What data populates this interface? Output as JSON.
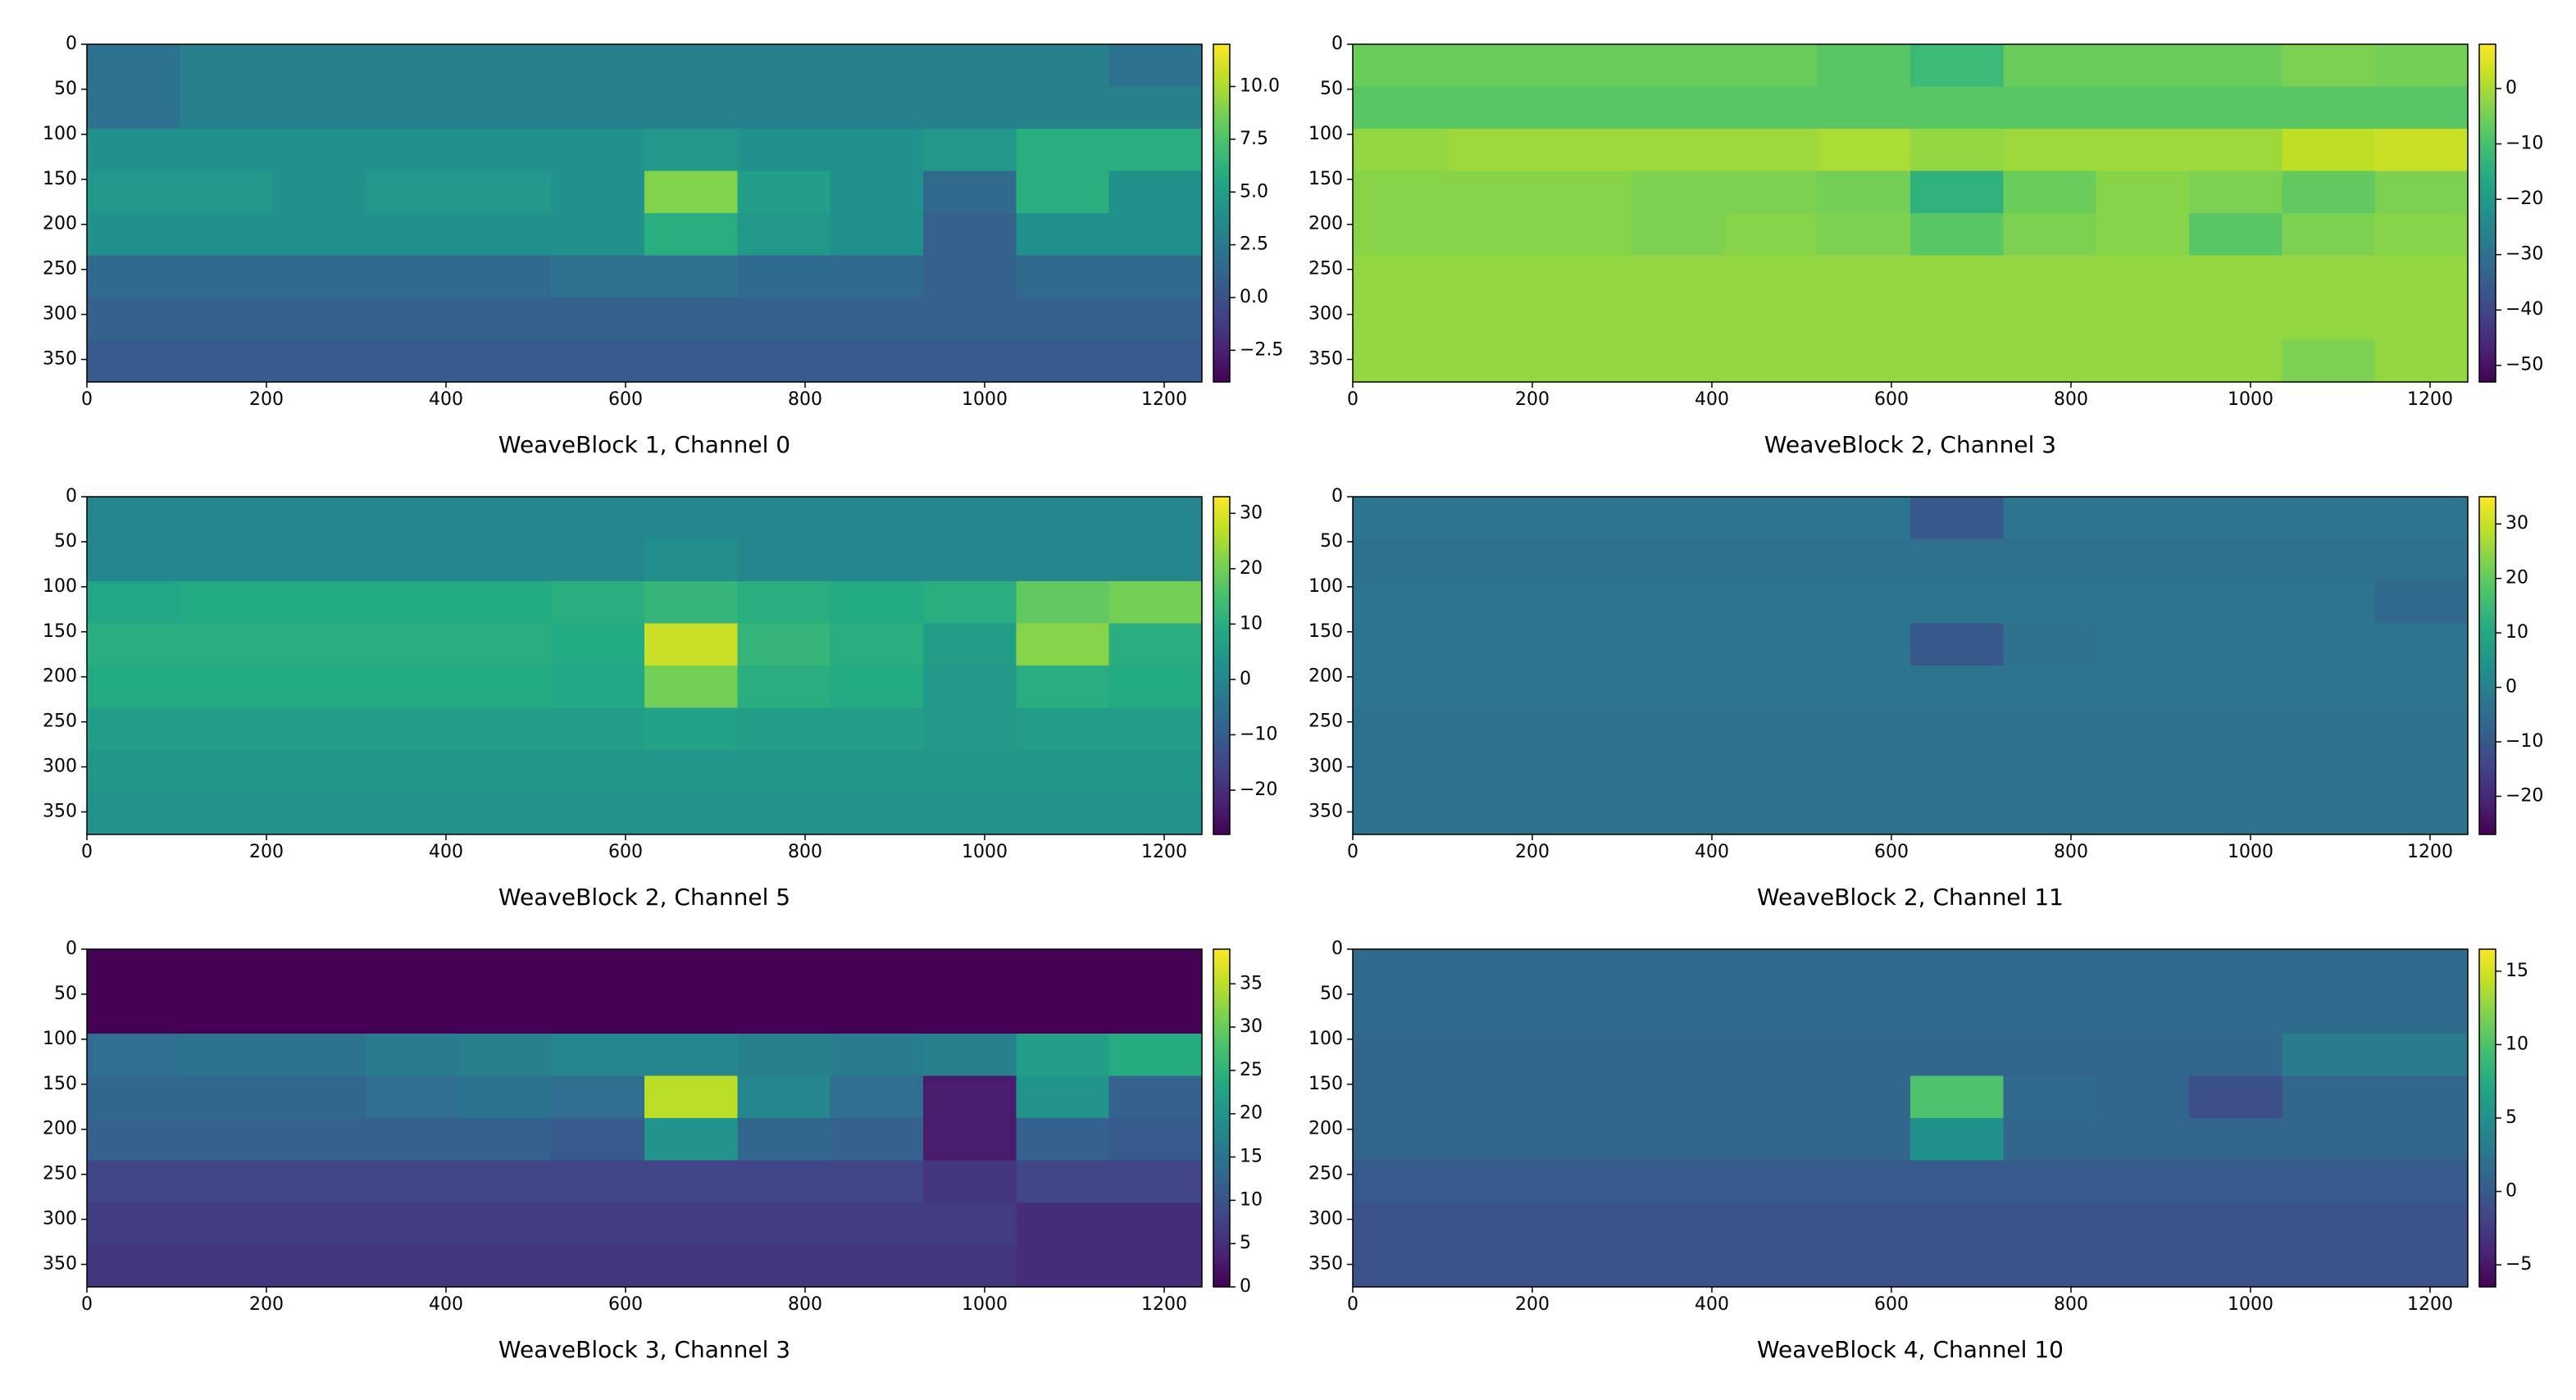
{
  "chart_data": [
    {
      "type": "heatmap",
      "xlabel": "WeaveBlock 1, Channel 0",
      "colormap": "viridis",
      "xlim": [
        0,
        1242
      ],
      "ylim": [
        375,
        0
      ],
      "xticks": [
        0,
        200,
        400,
        600,
        800,
        1000,
        1200
      ],
      "yticks": [
        0,
        50,
        100,
        150,
        200,
        250,
        300,
        350
      ],
      "zlim": [
        -4,
        12
      ],
      "zticks": [
        {
          "value": -2.5,
          "label": "−2.5"
        },
        {
          "value": 0,
          "label": "0.0"
        },
        {
          "value": 2.5,
          "label": "2.5"
        },
        {
          "value": 5,
          "label": "5.0"
        },
        {
          "value": 7.5,
          "label": "7.5"
        },
        {
          "value": 10,
          "label": "10.0"
        }
      ],
      "z": [
        [
          2,
          3,
          3,
          3,
          3,
          3,
          3,
          3,
          3,
          3,
          3,
          2
        ],
        [
          2,
          3,
          3,
          3,
          3,
          3,
          3,
          3,
          3,
          3,
          3,
          3
        ],
        [
          4,
          4,
          4,
          4,
          4,
          4,
          4.5,
          4,
          4,
          4.5,
          6,
          6
        ],
        [
          4.5,
          4.5,
          4,
          4.5,
          4.5,
          4,
          9,
          5,
          4,
          1.5,
          6,
          4
        ],
        [
          4,
          4,
          4,
          4,
          4,
          4,
          6,
          4.5,
          4,
          1,
          4,
          4
        ],
        [
          1.5,
          1.5,
          1.5,
          1.5,
          1.5,
          2,
          2,
          1.5,
          1.5,
          1,
          1.5,
          1.5
        ],
        [
          1,
          1,
          1,
          1,
          1,
          1,
          1,
          1,
          1,
          1,
          1,
          1
        ],
        [
          0.5,
          0.5,
          0.5,
          0.5,
          0.5,
          0.5,
          0.5,
          0.5,
          0.5,
          0.5,
          0.5,
          0.5
        ]
      ]
    },
    {
      "type": "heatmap",
      "xlabel": "WeaveBlock 2, Channel 3",
      "colormap": "viridis",
      "xlim": [
        0,
        1242
      ],
      "ylim": [
        375,
        0
      ],
      "xticks": [
        0,
        200,
        400,
        600,
        800,
        1000,
        1200
      ],
      "yticks": [
        0,
        50,
        100,
        150,
        200,
        250,
        300,
        350
      ],
      "zlim": [
        -53,
        8
      ],
      "zticks": [
        {
          "value": -50,
          "label": "−50"
        },
        {
          "value": -40,
          "label": "−40"
        },
        {
          "value": -30,
          "label": "−30"
        },
        {
          "value": -20,
          "label": "−20"
        },
        {
          "value": -10,
          "label": "−10"
        },
        0
      ],
      "z": [
        [
          -6,
          -6,
          -6,
          -6,
          -6,
          -8,
          -12,
          -6,
          -6,
          -6,
          -4,
          -5
        ],
        [
          -8,
          -8,
          -8,
          -8,
          -8,
          -8,
          -8,
          -8,
          -8,
          -8,
          -8,
          -8
        ],
        [
          -2,
          -1,
          -1,
          -1,
          -1,
          0,
          -2,
          -1,
          -1,
          -1,
          2,
          3
        ],
        [
          -3,
          -3,
          -3,
          -4,
          -4,
          -5,
          -14,
          -6,
          -3,
          -4,
          -7,
          -4
        ],
        [
          -3,
          -3,
          -3,
          -4,
          -3,
          -4,
          -8,
          -4,
          -3,
          -8,
          -4,
          -3
        ],
        [
          -2,
          -2,
          -2,
          -2,
          -2,
          -2,
          -2,
          -2,
          -2,
          -2,
          -2,
          -2
        ],
        [
          -2,
          -2,
          -2,
          -2,
          -2,
          -2,
          -2,
          -2,
          -2,
          -2,
          -2,
          -2
        ],
        [
          -2,
          -2,
          -2,
          -2,
          -2,
          -2,
          -2,
          -2,
          -2,
          -2,
          -4,
          -2
        ]
      ]
    },
    {
      "type": "heatmap",
      "xlabel": "WeaveBlock 2, Channel 5",
      "colormap": "viridis",
      "xlim": [
        0,
        1242
      ],
      "ylim": [
        375,
        0
      ],
      "xticks": [
        0,
        200,
        400,
        600,
        800,
        1000,
        1200
      ],
      "yticks": [
        0,
        50,
        100,
        150,
        200,
        250,
        300,
        350
      ],
      "zlim": [
        -28,
        33
      ],
      "zticks": [
        {
          "value": -20,
          "label": "−20"
        },
        {
          "value": -10,
          "label": "−10"
        },
        0,
        10,
        20,
        30
      ],
      "z": [
        [
          0,
          0,
          0,
          0,
          0,
          0,
          0,
          0,
          0,
          0,
          0,
          0
        ],
        [
          0,
          0,
          0,
          0,
          0,
          0,
          2,
          0,
          0,
          0,
          0,
          0
        ],
        [
          8,
          9,
          9,
          9,
          9,
          10,
          12,
          10,
          9,
          10,
          18,
          20
        ],
        [
          10,
          10,
          10,
          10,
          10,
          9,
          28,
          12,
          10,
          6,
          22,
          10
        ],
        [
          9,
          9,
          9,
          9,
          9,
          8,
          20,
          10,
          9,
          5,
          10,
          9
        ],
        [
          6,
          6,
          6,
          6,
          6,
          6,
          7,
          6,
          6,
          5,
          6,
          6
        ],
        [
          4,
          4,
          4,
          4,
          4,
          4,
          4,
          4,
          4,
          4,
          4,
          4
        ],
        [
          3,
          3,
          3,
          3,
          3,
          3,
          3,
          3,
          3,
          3,
          3,
          3
        ]
      ]
    },
    {
      "type": "heatmap",
      "xlabel": "WeaveBlock 2, Channel 11",
      "colormap": "viridis",
      "xlim": [
        0,
        1242
      ],
      "ylim": [
        375,
        0
      ],
      "xticks": [
        0,
        200,
        400,
        600,
        800,
        1000,
        1200
      ],
      "yticks": [
        0,
        50,
        100,
        150,
        200,
        250,
        300,
        350
      ],
      "zlim": [
        -27,
        35
      ],
      "zticks": [
        {
          "value": -20,
          "label": "−20"
        },
        {
          "value": -10,
          "label": "−10"
        },
        0,
        10,
        20,
        30
      ],
      "z": [
        [
          -3,
          -3,
          -3,
          -3,
          -3,
          -3,
          -10,
          -3,
          -3,
          -3,
          -3,
          -3
        ],
        [
          -4,
          -4,
          -4,
          -4,
          -4,
          -4,
          -4,
          -4,
          -4,
          -4,
          -4,
          -4
        ],
        [
          -3,
          -3,
          -3,
          -3,
          -3,
          -3,
          -3,
          -3,
          -3,
          -3,
          -3,
          -6
        ],
        [
          -3,
          -3,
          -3,
          -3,
          -3,
          -3,
          -10,
          -4,
          -3,
          -3,
          -3,
          -3
        ],
        [
          -3,
          -3,
          -3,
          -3,
          -3,
          -3,
          -3,
          -3,
          -3,
          -3,
          -3,
          -3
        ],
        [
          -4,
          -4,
          -4,
          -4,
          -4,
          -4,
          -4,
          -4,
          -4,
          -4,
          -4,
          -4
        ],
        [
          -4,
          -4,
          -4,
          -4,
          -4,
          -4,
          -4,
          -4,
          -4,
          -4,
          -4,
          -4
        ],
        [
          -4,
          -4,
          -4,
          -4,
          -4,
          -4,
          -4,
          -4,
          -4,
          -4,
          -4,
          -4
        ]
      ]
    },
    {
      "type": "heatmap",
      "xlabel": "WeaveBlock 3, Channel 3",
      "colormap": "viridis",
      "xlim": [
        0,
        1242
      ],
      "ylim": [
        375,
        0
      ],
      "xticks": [
        0,
        200,
        400,
        600,
        800,
        1000,
        1200
      ],
      "yticks": [
        0,
        50,
        100,
        150,
        200,
        250,
        300,
        350
      ],
      "zlim": [
        0,
        39
      ],
      "zticks": [
        0,
        5,
        10,
        15,
        20,
        25,
        30,
        35
      ],
      "z": [
        [
          0,
          0,
          0,
          0,
          0,
          0,
          0,
          0,
          0,
          0,
          0,
          0
        ],
        [
          0,
          0,
          0,
          0,
          0,
          0,
          0,
          0,
          0,
          0,
          0,
          0
        ],
        [
          14,
          15,
          15,
          16,
          17,
          18,
          18,
          17,
          16,
          17,
          22,
          24
        ],
        [
          13,
          13,
          13,
          14,
          15,
          14,
          35,
          18,
          14,
          3,
          20,
          12
        ],
        [
          12,
          12,
          12,
          12,
          12,
          11,
          20,
          13,
          12,
          3,
          12,
          11
        ],
        [
          8,
          8,
          8,
          8,
          8,
          8,
          8,
          8,
          8,
          6,
          8,
          8
        ],
        [
          7,
          7,
          7,
          7,
          7,
          7,
          7,
          7,
          7,
          7,
          5,
          5
        ],
        [
          6,
          6,
          6,
          6,
          6,
          6,
          6,
          6,
          6,
          6,
          5,
          5
        ]
      ]
    },
    {
      "type": "heatmap",
      "xlabel": "WeaveBlock 4, Channel 10",
      "colormap": "viridis",
      "xlim": [
        0,
        1242
      ],
      "ylim": [
        375,
        0
      ],
      "xticks": [
        0,
        200,
        400,
        600,
        800,
        1000,
        1200
      ],
      "yticks": [
        0,
        50,
        100,
        150,
        200,
        250,
        300,
        350
      ],
      "zlim": [
        -6.5,
        16.5
      ],
      "zticks": [
        {
          "value": -5,
          "label": "−5"
        },
        0,
        5,
        10,
        15
      ],
      "z": [
        [
          1.5,
          1.5,
          1.5,
          1.5,
          1.5,
          1.5,
          1.5,
          1.5,
          1.5,
          1.5,
          1.5,
          1.5
        ],
        [
          1.5,
          1.5,
          1.5,
          1.5,
          1.5,
          1.5,
          1.5,
          1.5,
          1.5,
          1.5,
          1.5,
          1.5
        ],
        [
          1,
          1,
          1,
          1,
          1,
          1,
          1,
          1,
          1,
          1,
          3,
          3
        ],
        [
          1,
          1,
          1,
          1,
          1,
          1,
          10,
          1.5,
          1,
          -1,
          1,
          1
        ],
        [
          1,
          1,
          1,
          1,
          1,
          1,
          5,
          1,
          1,
          1,
          1,
          1
        ],
        [
          0,
          0,
          0,
          0,
          0,
          0,
          0,
          0,
          0,
          0,
          0,
          0
        ],
        [
          -0.5,
          -0.5,
          -0.5,
          -0.5,
          -0.5,
          -0.5,
          -0.5,
          -0.5,
          -0.5,
          -0.5,
          -0.5,
          -0.5
        ],
        [
          -0.5,
          -0.5,
          -0.5,
          -0.5,
          -0.5,
          -0.5,
          -0.5,
          -0.5,
          -0.5,
          -0.5,
          -0.5,
          -0.5
        ]
      ]
    }
  ]
}
